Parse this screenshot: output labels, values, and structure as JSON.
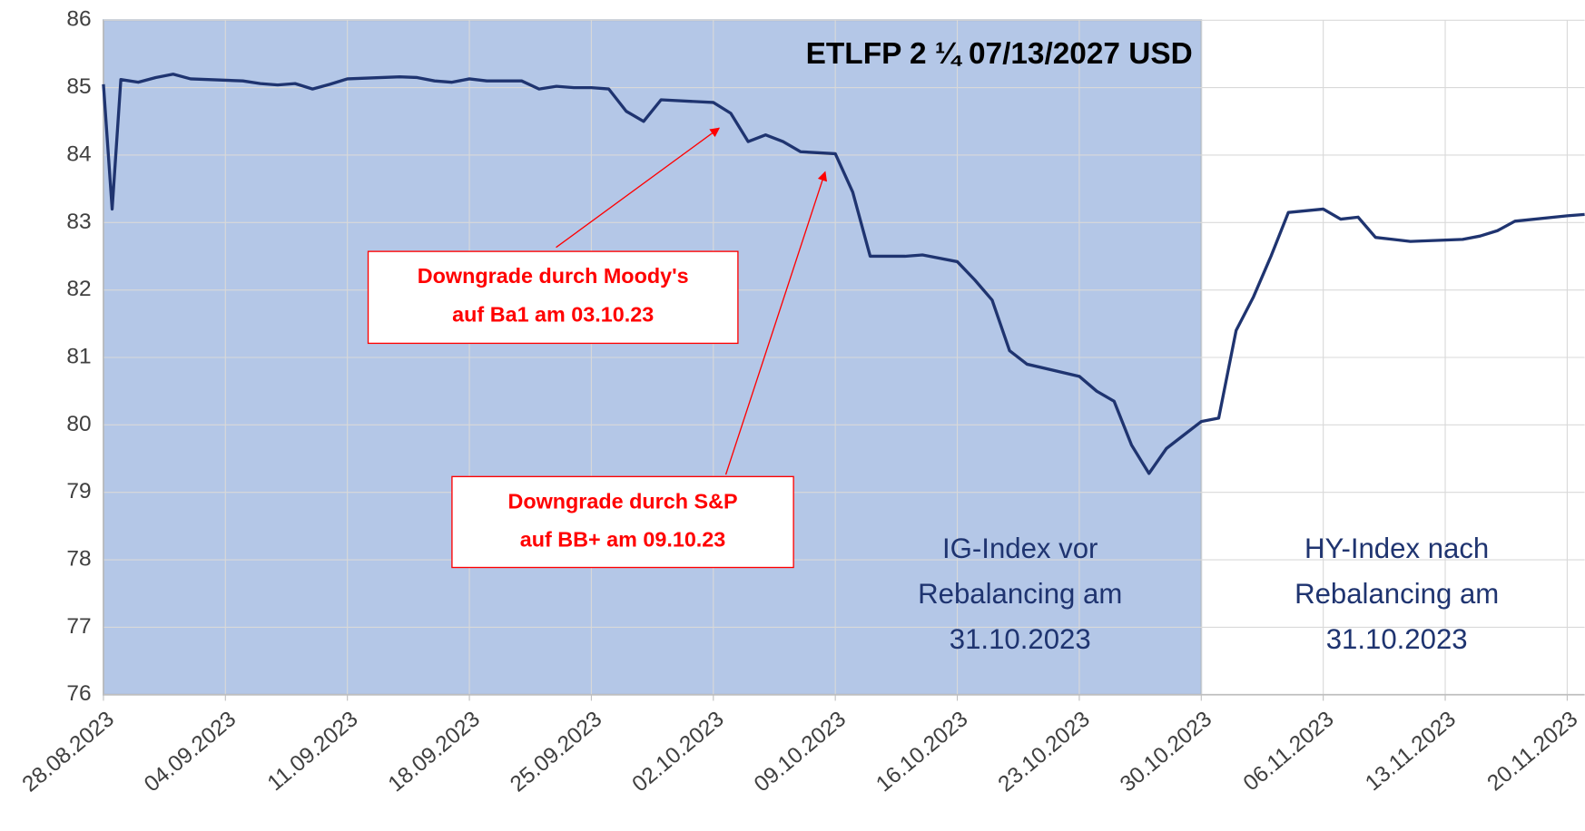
{
  "chart_data": {
    "type": "line",
    "title": "ETLFP 2 ¼ 07/13/2027 USD",
    "x": [
      "2023-08-28",
      "2023-08-28T12:00",
      "2023-08-29",
      "2023-08-30",
      "2023-08-31",
      "2023-09-01",
      "2023-09-02",
      "2023-09-05",
      "2023-09-06",
      "2023-09-07",
      "2023-09-08",
      "2023-09-09",
      "2023-09-10",
      "2023-09-11",
      "2023-09-12",
      "2023-09-14",
      "2023-09-15",
      "2023-09-16",
      "2023-09-17",
      "2023-09-18",
      "2023-09-19",
      "2023-09-21",
      "2023-09-22",
      "2023-09-23",
      "2023-09-24",
      "2023-09-25",
      "2023-09-26",
      "2023-09-27",
      "2023-09-28",
      "2023-09-29",
      "2023-10-02",
      "2023-10-03",
      "2023-10-04",
      "2023-10-05",
      "2023-10-06",
      "2023-10-07",
      "2023-10-09",
      "2023-10-10",
      "2023-10-11",
      "2023-10-13",
      "2023-10-14",
      "2023-10-16",
      "2023-10-17",
      "2023-10-18",
      "2023-10-19",
      "2023-10-20",
      "2023-10-23",
      "2023-10-24",
      "2023-10-25",
      "2023-10-26",
      "2023-10-27",
      "2023-10-28",
      "2023-10-29",
      "2023-10-30",
      "2023-10-31",
      "2023-11-01",
      "2023-11-02",
      "2023-11-03",
      "2023-11-04",
      "2023-11-06",
      "2023-11-07",
      "2023-11-08",
      "2023-11-09",
      "2023-11-10",
      "2023-11-11",
      "2023-11-14",
      "2023-11-15",
      "2023-11-16",
      "2023-11-17",
      "2023-11-20",
      "2023-11-21"
    ],
    "series": [
      {
        "name": "ETLFP 2 ¼ 07/13/2027 USD",
        "color": "#1f3470",
        "values": [
          85.05,
          83.2,
          85.12,
          85.08,
          85.15,
          85.2,
          85.13,
          85.1,
          85.06,
          85.04,
          85.06,
          84.98,
          85.05,
          85.13,
          85.14,
          85.16,
          85.15,
          85.1,
          85.08,
          85.13,
          85.1,
          85.1,
          84.98,
          85.02,
          85.0,
          85.0,
          84.98,
          84.65,
          84.5,
          84.82,
          84.78,
          84.62,
          84.2,
          84.3,
          84.2,
          84.05,
          84.02,
          83.45,
          82.5,
          82.5,
          82.52,
          82.42,
          82.15,
          81.85,
          81.1,
          80.9,
          80.72,
          80.5,
          80.35,
          79.7,
          79.28,
          79.65,
          79.85,
          80.05,
          80.1,
          81.4,
          81.9,
          82.5,
          83.15,
          83.2,
          83.05,
          83.08,
          82.78,
          82.75,
          82.72,
          82.75,
          82.8,
          82.88,
          83.02,
          83.1,
          83.12
        ]
      }
    ],
    "xlim": [
      "2023-08-28",
      "2023-11-21"
    ],
    "xticks": [
      {
        "value": "2023-08-28",
        "label": "28.08.2023"
      },
      {
        "value": "2023-09-04",
        "label": "04.09.2023"
      },
      {
        "value": "2023-09-11",
        "label": "11.09.2023"
      },
      {
        "value": "2023-09-18",
        "label": "18.09.2023"
      },
      {
        "value": "2023-09-25",
        "label": "25.09.2023"
      },
      {
        "value": "2023-10-02",
        "label": "02.10.2023"
      },
      {
        "value": "2023-10-09",
        "label": "09.10.2023"
      },
      {
        "value": "2023-10-16",
        "label": "16.10.2023"
      },
      {
        "value": "2023-10-23",
        "label": "23.10.2023"
      },
      {
        "value": "2023-10-30",
        "label": "30.10.2023"
      },
      {
        "value": "2023-11-06",
        "label": "06.11.2023"
      },
      {
        "value": "2023-11-13",
        "label": "13.11.2023"
      },
      {
        "value": "2023-11-20",
        "label": "20.11.2023"
      }
    ],
    "ylim": [
      76,
      86
    ],
    "yticks": [
      76,
      77,
      78,
      79,
      80,
      81,
      82,
      83,
      84,
      85,
      86
    ],
    "grid": true,
    "highlight": {
      "from": "2023-08-28",
      "to": "2023-10-30",
      "color": "#b4c7e7"
    },
    "annotations": [
      {
        "lines": [
          "Downgrade durch Moody's",
          "auf Ba1 am 03.10.23"
        ],
        "arrow_x": "2023-10-02T08:00",
        "arrow_y": 84.4,
        "color": "#ff0000"
      },
      {
        "lines": [
          "Downgrade durch S&P",
          "auf BB+ am 09.10.23"
        ],
        "arrow_x": "2023-10-08T10:00",
        "arrow_y": 83.75,
        "color": "#ff0000"
      }
    ],
    "region_labels": [
      {
        "lines": [
          "IG-Index vor",
          "Rebalancing am",
          "31.10.2023"
        ]
      },
      {
        "lines": [
          "HY-Index nach",
          "Rebalancing am",
          "31.10.2023"
        ]
      }
    ]
  }
}
